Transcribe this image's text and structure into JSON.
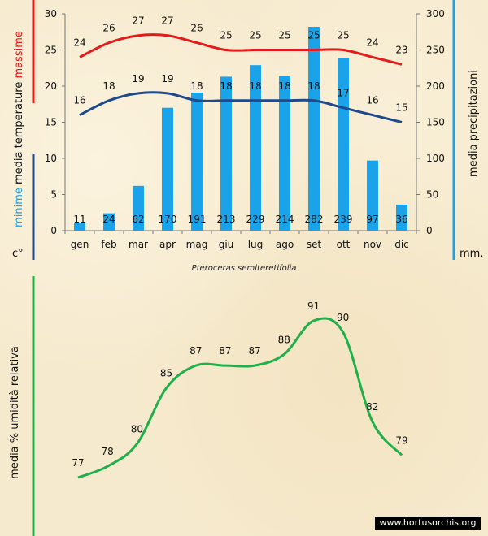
{
  "chart_data": [
    {
      "type": "bar+line",
      "categories": [
        "gen",
        "feb",
        "mar",
        "apr",
        "mag",
        "giu",
        "lug",
        "ago",
        "set",
        "ott",
        "nov",
        "dic"
      ],
      "bars": {
        "name": "precipitazioni",
        "values": [
          11,
          24,
          62,
          170,
          191,
          213,
          229,
          214,
          282,
          239,
          97,
          36
        ],
        "color": "#1aa3e8"
      },
      "series": [
        {
          "name": "massime",
          "values": [
            24,
            26,
            27,
            27,
            26,
            25,
            25,
            25,
            25,
            25,
            24,
            23
          ],
          "color": "#e31b1b"
        },
        {
          "name": "minime",
          "values": [
            16,
            18,
            19,
            19,
            18,
            18,
            18,
            18,
            18,
            17,
            16,
            15
          ],
          "color": "#1e4a8c"
        }
      ],
      "y_left": {
        "ylim": [
          0,
          30
        ],
        "ticks": [
          0,
          5,
          10,
          15,
          20,
          25,
          30
        ],
        "label_words": [
          "minime",
          "media temperature",
          "massime"
        ],
        "unit": "c°"
      },
      "y_right": {
        "ylim": [
          0,
          300
        ],
        "ticks": [
          0,
          50,
          100,
          150,
          200,
          250,
          300
        ],
        "label": "media precipitazioni",
        "unit": "mm."
      },
      "grid": false,
      "caption": "Pteroceras semiteretifolia"
    },
    {
      "type": "line",
      "categories": [
        "gen",
        "feb",
        "mar",
        "apr",
        "mag",
        "giu",
        "lug",
        "ago",
        "set",
        "ott",
        "nov",
        "dic"
      ],
      "series": [
        {
          "name": "media % umidità relativa",
          "values": [
            77,
            78,
            80,
            85,
            87,
            87,
            87,
            88,
            91,
            90,
            82,
            79
          ],
          "color": "#1fb04a"
        }
      ],
      "ylabel": "media % umidità relativa",
      "grid": false
    }
  ],
  "watermark": "www.hortusorchis.org",
  "colors": {
    "left_axis_bar_red": "#e31b1b",
    "left_axis_bar_blue": "#1e4a8c",
    "right_axis_bar": "#1aa3e8",
    "humidity_axis_bar": "#1fb04a"
  }
}
